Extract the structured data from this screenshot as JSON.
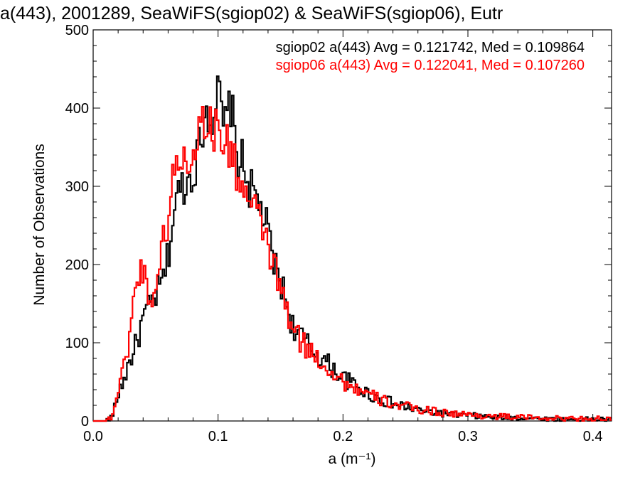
{
  "chart_data": {
    "type": "line",
    "title": "a(443), 2001289, SeaWiFS(sgiop02) & SeaWiFS(sgiop06), Eutr",
    "xlabel": "a (m⁻¹)",
    "ylabel": "Number of Observations",
    "xlim": [
      0,
      0.415
    ],
    "ylim": [
      0,
      500
    ],
    "xticks": [
      "0.0",
      "0.1",
      "0.2",
      "0.3",
      "0.4"
    ],
    "yticks": [
      "0",
      "100",
      "200",
      "300",
      "400",
      "500"
    ],
    "grid": false,
    "step": true,
    "legend": [
      {
        "text": "sgiop02 a(443) Avg = 0.121742, Med = 0.109864",
        "color": "#000000"
      },
      {
        "text": "sgiop06 a(443) Avg = 0.122041, Med = 0.107260",
        "color": "#ff0000"
      }
    ],
    "series": [
      {
        "name": "sgiop02",
        "color": "#000000",
        "x": [
          0,
          0.01,
          0.015,
          0.018,
          0.02,
          0.025,
          0.03,
          0.035,
          0.04,
          0.045,
          0.05,
          0.055,
          0.06,
          0.065,
          0.07,
          0.075,
          0.08,
          0.085,
          0.09,
          0.095,
          0.1,
          0.105,
          0.11,
          0.115,
          0.12,
          0.125,
          0.13,
          0.135,
          0.14,
          0.145,
          0.15,
          0.155,
          0.16,
          0.17,
          0.18,
          0.19,
          0.2,
          0.21,
          0.22,
          0.23,
          0.24,
          0.25,
          0.26,
          0.27,
          0.28,
          0.29,
          0.3,
          0.32,
          0.34,
          0.36,
          0.38,
          0.4,
          0.415
        ],
        "y": [
          0,
          0,
          5,
          20,
          35,
          55,
          80,
          100,
          130,
          145,
          160,
          175,
          210,
          270,
          300,
          305,
          320,
          350,
          400,
          390,
          420,
          370,
          410,
          340,
          330,
          300,
          285,
          270,
          240,
          200,
          180,
          150,
          120,
          100,
          85,
          70,
          55,
          45,
          35,
          28,
          22,
          18,
          14,
          12,
          10,
          8,
          7,
          5,
          4,
          3,
          2,
          2,
          2
        ]
      },
      {
        "name": "sgiop06",
        "color": "#ff0000",
        "x": [
          0,
          0.01,
          0.015,
          0.018,
          0.02,
          0.025,
          0.03,
          0.035,
          0.04,
          0.045,
          0.05,
          0.055,
          0.06,
          0.065,
          0.07,
          0.075,
          0.08,
          0.085,
          0.09,
          0.095,
          0.1,
          0.105,
          0.11,
          0.115,
          0.12,
          0.125,
          0.13,
          0.135,
          0.14,
          0.145,
          0.15,
          0.155,
          0.16,
          0.17,
          0.18,
          0.19,
          0.2,
          0.21,
          0.22,
          0.23,
          0.24,
          0.25,
          0.26,
          0.27,
          0.28,
          0.29,
          0.3,
          0.32,
          0.34,
          0.36,
          0.38,
          0.4,
          0.415
        ],
        "y": [
          0,
          0,
          5,
          25,
          40,
          70,
          120,
          185,
          195,
          155,
          170,
          220,
          260,
          320,
          340,
          330,
          350,
          370,
          395,
          365,
          380,
          355,
          345,
          320,
          300,
          275,
          265,
          250,
          225,
          195,
          170,
          140,
          115,
          95,
          80,
          65,
          50,
          42,
          33,
          27,
          22,
          18,
          15,
          13,
          11,
          9,
          8,
          6,
          5,
          4,
          3,
          3,
          3
        ]
      }
    ]
  }
}
